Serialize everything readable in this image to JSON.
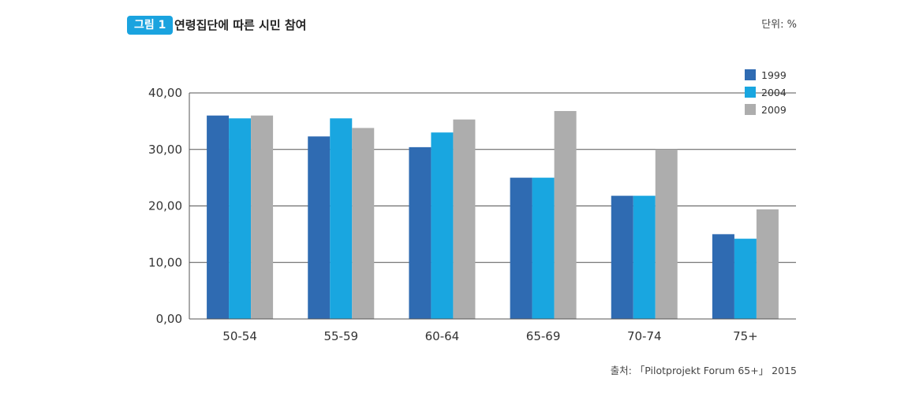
{
  "header": {
    "figure_badge": "그림 1",
    "title": "연령집단에 따른 시민 참여",
    "unit": "단위: %"
  },
  "footer": {
    "source": "출처: 「Pilotprojekt Forum 65+」 2015"
  },
  "colors": {
    "1999": "#2f6bb2",
    "2004": "#19a6e0",
    "2009": "#adadad",
    "badge": "#1aa3df",
    "grid": "#555555"
  },
  "chart_data": {
    "type": "bar",
    "categories": [
      "50-54",
      "55-59",
      "60-64",
      "65-69",
      "70-74",
      "75+"
    ],
    "series": [
      {
        "name": "1999",
        "values": [
          36.0,
          32.3,
          30.4,
          25.0,
          21.8,
          15.0
        ]
      },
      {
        "name": "2004",
        "values": [
          35.5,
          35.5,
          33.0,
          25.0,
          21.8,
          14.2
        ]
      },
      {
        "name": "2009",
        "values": [
          36.0,
          33.8,
          35.3,
          36.8,
          30.0,
          19.4
        ]
      }
    ],
    "y_ticks": [
      "0,00",
      "10,00",
      "20,00",
      "30,00",
      "40,00"
    ],
    "ylim": [
      0,
      40
    ],
    "grid": true,
    "legend_position": "top-right"
  }
}
